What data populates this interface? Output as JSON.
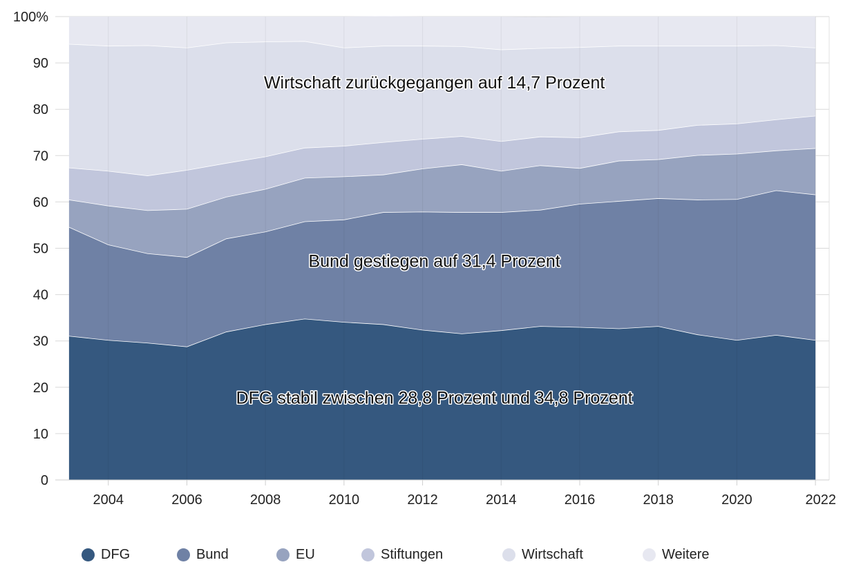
{
  "chart_data": {
    "type": "area",
    "stacked": true,
    "x": [
      2003,
      2004,
      2005,
      2006,
      2007,
      2008,
      2009,
      2010,
      2011,
      2012,
      2013,
      2014,
      2015,
      2016,
      2017,
      2018,
      2019,
      2020,
      2021,
      2022
    ],
    "xticks": [
      "2004",
      "2006",
      "2008",
      "2010",
      "2012",
      "2014",
      "2016",
      "2018",
      "2020",
      "2022"
    ],
    "yticks": [
      "0",
      "10",
      "20",
      "30",
      "40",
      "50",
      "60",
      "70",
      "80",
      "90",
      "100%"
    ],
    "ylim": [
      0,
      100
    ],
    "grid": true,
    "series": [
      {
        "name": "DFG",
        "color": "#35587f",
        "values": [
          31.1,
          30.2,
          29.6,
          28.8,
          32.0,
          33.6,
          34.8,
          34.1,
          33.6,
          32.4,
          31.6,
          32.3,
          33.2,
          33.0,
          32.7,
          33.2,
          31.4,
          30.2,
          31.3,
          30.2
        ]
      },
      {
        "name": "Bund",
        "color": "#6f81a5",
        "values": [
          23.5,
          20.6,
          19.3,
          19.3,
          20.1,
          20.0,
          21.0,
          22.1,
          24.2,
          25.5,
          26.2,
          25.5,
          25.1,
          26.6,
          27.5,
          27.6,
          29.1,
          30.4,
          31.2,
          31.4
        ]
      },
      {
        "name": "EU",
        "color": "#97a3bf",
        "values": [
          5.9,
          8.4,
          9.3,
          10.4,
          9.0,
          9.2,
          9.4,
          9.3,
          8.1,
          9.3,
          10.3,
          8.9,
          9.6,
          7.7,
          8.7,
          8.4,
          9.6,
          9.8,
          8.6,
          10.0
        ]
      },
      {
        "name": "Stiftungen",
        "color": "#c1c6dc",
        "values": [
          6.9,
          7.5,
          7.5,
          8.4,
          7.3,
          7.0,
          6.5,
          6.6,
          7.0,
          6.4,
          6.1,
          6.4,
          6.2,
          6.6,
          6.3,
          6.3,
          6.5,
          6.5,
          6.7,
          7.0
        ]
      },
      {
        "name": "Wirtschaft",
        "color": "#dcdfeb",
        "values": [
          26.7,
          27.0,
          28.1,
          26.4,
          26.0,
          24.8,
          23.0,
          21.2,
          20.8,
          20.1,
          19.4,
          19.8,
          19.1,
          19.5,
          18.5,
          18.2,
          17.1,
          16.8,
          16.0,
          14.7
        ]
      },
      {
        "name": "Weitere",
        "color": "#e7e8f1",
        "values": [
          5.9,
          6.3,
          6.2,
          6.7,
          5.6,
          5.4,
          5.3,
          6.7,
          6.4,
          6.3,
          6.4,
          7.1,
          6.7,
          6.6,
          6.3,
          6.3,
          6.3,
          6.3,
          6.2,
          6.7
        ]
      }
    ],
    "annotations": [
      {
        "text": "Wirtschaft zurückgegangen auf 14,7 Prozent",
        "x": 2012.3,
        "y": 84.5
      },
      {
        "text": "Bund gestiegen auf 31,4 Prozent",
        "x": 2012.3,
        "y": 46.0
      },
      {
        "text": "DFG stabil zwischen 28,8 Prozent und 34,8 Prozent",
        "x": 2012.3,
        "y": 16.5
      }
    ],
    "legend_position": "bottom-left"
  }
}
